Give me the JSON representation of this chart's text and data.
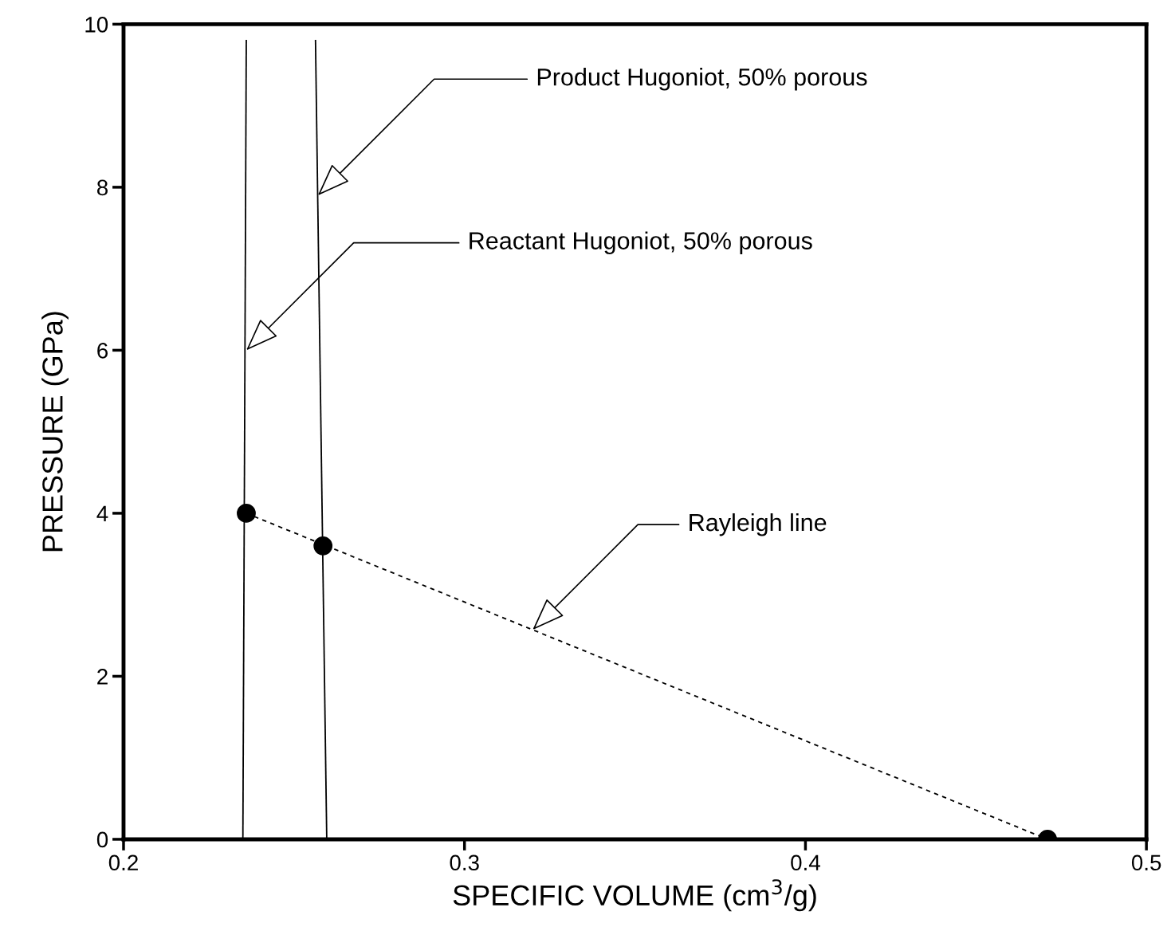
{
  "chart_data": {
    "type": "line",
    "xlabel": "SPECIFIC VOLUME (cm$^{3}$/g)",
    "ylabel": "PRESSURE (GPa)",
    "xlim": [
      0.2,
      0.5
    ],
    "xticks": [
      0.2,
      0.3,
      0.4,
      0.5
    ],
    "ylim": [
      0,
      10
    ],
    "yticks": [
      0,
      2,
      4,
      6,
      8,
      10
    ],
    "grid": false,
    "legend": false,
    "series": [
      {
        "color": "#000000",
        "line_style": "solid",
        "x": [
          0.235,
          0.236
        ],
        "values": [
          0,
          9.8
        ]
      },
      {
        "color": "#000000",
        "line_style": "solid",
        "x": [
          0.2596,
          0.2563
        ],
        "values": [
          0,
          9.8
        ]
      },
      {
        "color": "#000000",
        "line_style": "dashed",
        "x": [
          0.236,
          0.471
        ],
        "values": [
          4.0,
          0
        ]
      },
      {
        "type": "scatter",
        "color": "#000000",
        "marker": "circle",
        "x": [
          0.236,
          0.2585,
          0.471
        ],
        "values": [
          4.0,
          3.6,
          0
        ]
      }
    ],
    "annotations": [
      {
        "text": "Product Hugoniot, 50% porous",
        "x": 0.257,
        "y": 7.9
      },
      {
        "text": "Reactant Hugoniot, 50% porous",
        "x": 0.236,
        "y": 6.0
      },
      {
        "text": "Rayleigh line",
        "x": 0.32,
        "y": 2.57
      }
    ]
  }
}
